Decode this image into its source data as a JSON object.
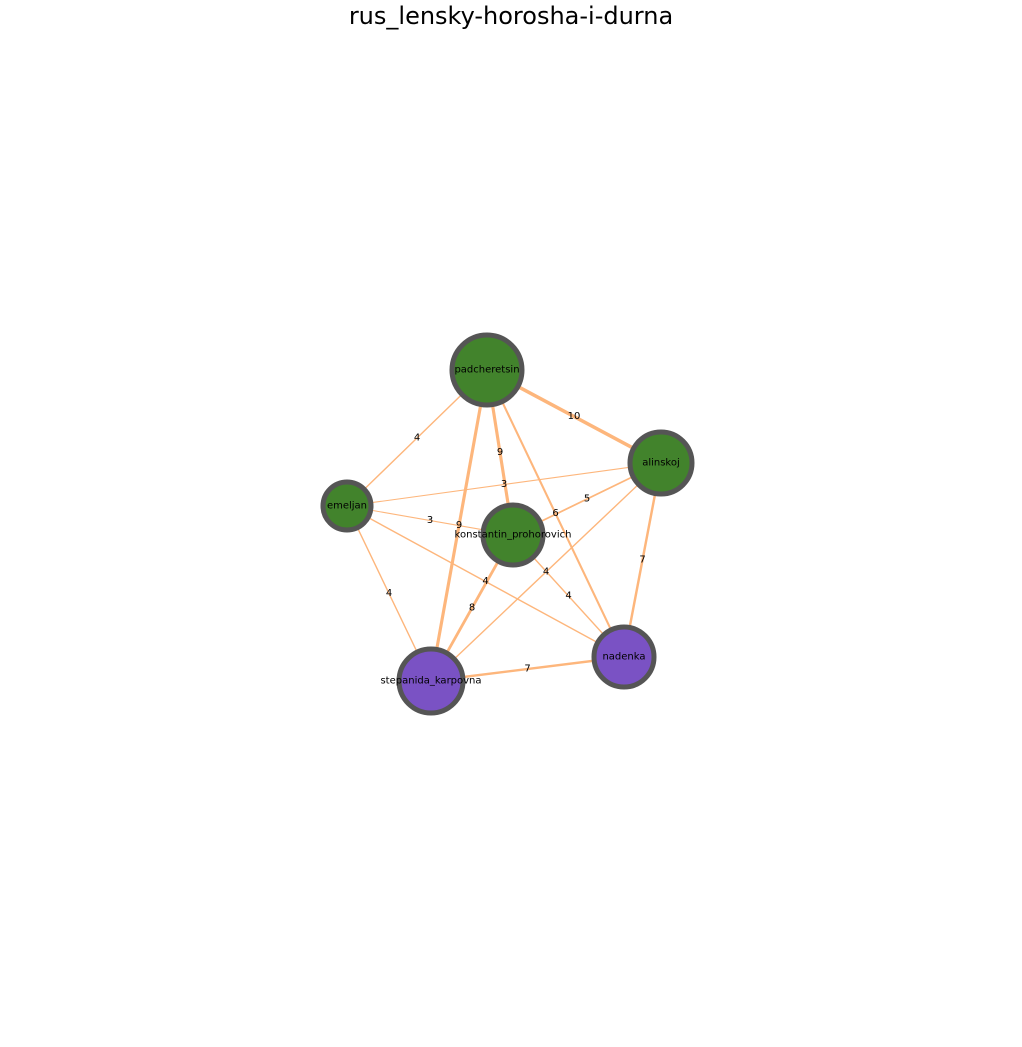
{
  "title": "rus_lensky-horosha-i-durna",
  "colors": {
    "edge": "#fdb67c",
    "node_outline": "#555555",
    "group_green": "#42832c",
    "group_purple": "#7a52c4"
  },
  "nodes": [
    {
      "id": "padcheretsin",
      "label": "padcheretsin",
      "group": "green"
    },
    {
      "id": "alinskoj",
      "label": "alinskoj",
      "group": "green"
    },
    {
      "id": "emeljan",
      "label": "emeljan",
      "group": "green"
    },
    {
      "id": "konstantin_prohorovich",
      "label": "konstantin_prohorovich",
      "group": "green"
    },
    {
      "id": "nadenka",
      "label": "nadenka",
      "group": "purple"
    },
    {
      "id": "stepanida_karpovna",
      "label": "stepanida_karpovna",
      "group": "purple"
    }
  ],
  "edges": [
    {
      "source": "padcheretsin",
      "target": "alinskoj",
      "weight": 10
    },
    {
      "source": "padcheretsin",
      "target": "emeljan",
      "weight": 4
    },
    {
      "source": "padcheretsin",
      "target": "konstantin_prohorovich",
      "weight": 9
    },
    {
      "source": "padcheretsin",
      "target": "stepanida_karpovna",
      "weight": 9
    },
    {
      "source": "padcheretsin",
      "target": "nadenka",
      "weight": 6
    },
    {
      "source": "emeljan",
      "target": "alinskoj",
      "weight": 3
    },
    {
      "source": "emeljan",
      "target": "konstantin_prohorovich",
      "weight": 3
    },
    {
      "source": "emeljan",
      "target": "stepanida_karpovna",
      "weight": 4
    },
    {
      "source": "emeljan",
      "target": "nadenka",
      "weight": 4
    },
    {
      "source": "alinskoj",
      "target": "konstantin_prohorovich",
      "weight": 5
    },
    {
      "source": "alinskoj",
      "target": "nadenka",
      "weight": 7
    },
    {
      "source": "alinskoj",
      "target": "stepanida_karpovna",
      "weight": 4
    },
    {
      "source": "konstantin_prohorovich",
      "target": "stepanida_karpovna",
      "weight": 8
    },
    {
      "source": "konstantin_prohorovich",
      "target": "nadenka",
      "weight": 4
    },
    {
      "source": "stepanida_karpovna",
      "target": "nadenka",
      "weight": 7
    }
  ]
}
